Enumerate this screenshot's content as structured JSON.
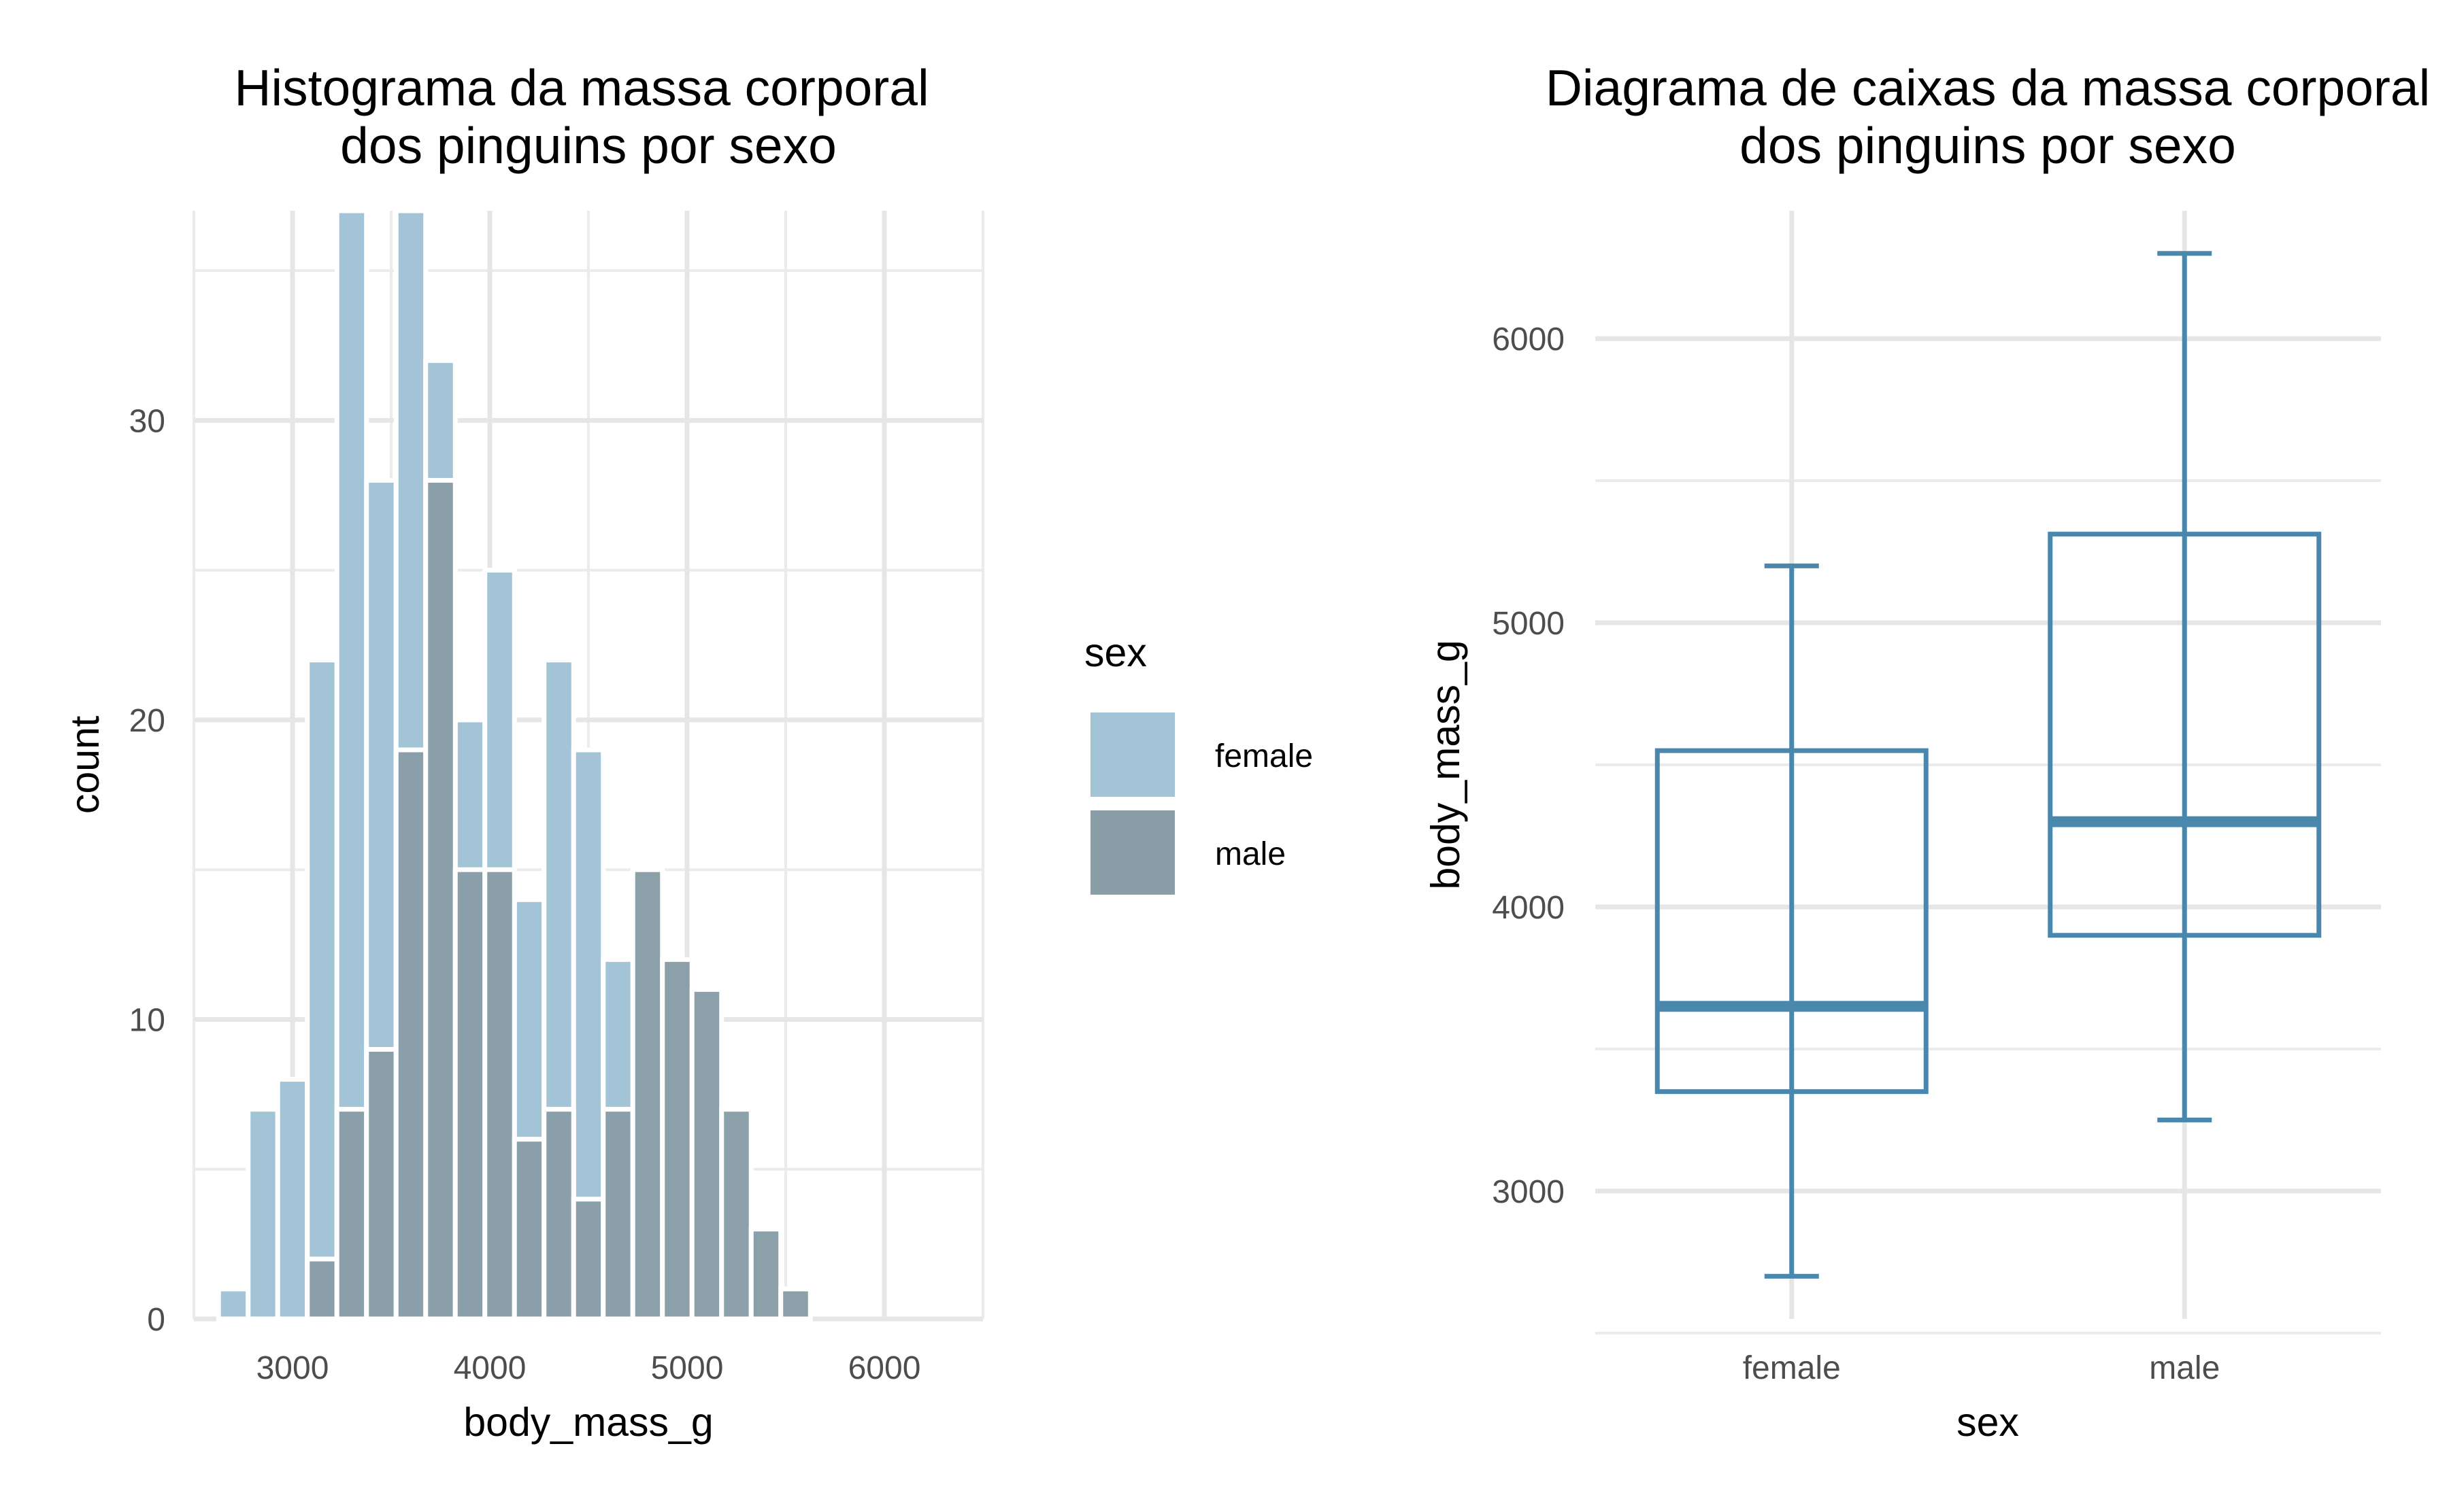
{
  "chart_data": [
    {
      "type": "histogram",
      "title_lines": [
        "Histograma da massa corporal",
        "dos pinguins por sexo"
      ],
      "xlabel": "body_mass_g",
      "ylabel": "count",
      "xlim": [
        2500,
        6500
      ],
      "ylim": [
        0,
        37
      ],
      "x_ticks": [
        3000,
        4000,
        5000,
        6000
      ],
      "y_ticks": [
        0,
        10,
        20,
        30
      ],
      "grid": true,
      "legend": {
        "title": "sex",
        "position": "right"
      },
      "bin_width": 150,
      "series": [
        {
          "name": "female",
          "color": "#a3c4d6",
          "bins": [
            {
              "x0": 2625,
              "x1": 2775,
              "count": 1
            },
            {
              "x0": 2775,
              "x1": 2925,
              "count": 7
            },
            {
              "x0": 2925,
              "x1": 3075,
              "count": 8
            },
            {
              "x0": 3075,
              "x1": 3225,
              "count": 22
            },
            {
              "x0": 3225,
              "x1": 3375,
              "count": 37
            },
            {
              "x0": 3375,
              "x1": 3525,
              "count": 28
            },
            {
              "x0": 3525,
              "x1": 3675,
              "count": 37
            },
            {
              "x0": 3675,
              "x1": 3825,
              "count": 32
            },
            {
              "x0": 3825,
              "x1": 3975,
              "count": 20
            },
            {
              "x0": 3975,
              "x1": 4125,
              "count": 25
            },
            {
              "x0": 4125,
              "x1": 4275,
              "count": 14
            },
            {
              "x0": 4275,
              "x1": 4425,
              "count": 22
            },
            {
              "x0": 4425,
              "x1": 4575,
              "count": 19
            },
            {
              "x0": 4575,
              "x1": 4725,
              "count": 12
            }
          ]
        },
        {
          "name": "male",
          "color": "#8a9ea7",
          "bins": [
            {
              "x0": 3075,
              "x1": 3225,
              "count": 2
            },
            {
              "x0": 3225,
              "x1": 3375,
              "count": 7
            },
            {
              "x0": 3375,
              "x1": 3525,
              "count": 9
            },
            {
              "x0": 3525,
              "x1": 3675,
              "count": 19
            },
            {
              "x0": 3675,
              "x1": 3825,
              "count": 28
            },
            {
              "x0": 3825,
              "x1": 3975,
              "count": 15
            },
            {
              "x0": 3975,
              "x1": 4125,
              "count": 15
            },
            {
              "x0": 4125,
              "x1": 4275,
              "count": 6
            },
            {
              "x0": 4275,
              "x1": 4425,
              "count": 7
            },
            {
              "x0": 4425,
              "x1": 4575,
              "count": 4
            },
            {
              "x0": 4575,
              "x1": 4725,
              "count": 7
            },
            {
              "x0": 4725,
              "x1": 4875,
              "count": 15
            },
            {
              "x0": 4875,
              "x1": 5025,
              "count": 12
            },
            {
              "x0": 5025,
              "x1": 5175,
              "count": 11
            },
            {
              "x0": 5175,
              "x1": 5325,
              "count": 7
            },
            {
              "x0": 5325,
              "x1": 5475,
              "count": 3
            },
            {
              "x0": 5475,
              "x1": 5625,
              "count": 1
            }
          ]
        }
      ]
    },
    {
      "type": "boxplot",
      "title_lines": [
        "Diagrama de caixas da massa corporal",
        "dos pinguins por sexo"
      ],
      "xlabel": "sex",
      "ylabel": "body_mass_g",
      "ylim": [
        2550,
        6450
      ],
      "y_ticks": [
        3000,
        4000,
        5000,
        6000
      ],
      "grid": true,
      "color": "#4a87ad",
      "categories": [
        "female",
        "male"
      ],
      "boxes": [
        {
          "category": "female",
          "min": 2700,
          "q1": 3350,
          "median": 3650,
          "q3": 4550,
          "max": 5200
        },
        {
          "category": "male",
          "min": 3250,
          "q1": 3900,
          "median": 4300,
          "q3": 5312,
          "max": 6300
        }
      ]
    }
  ]
}
